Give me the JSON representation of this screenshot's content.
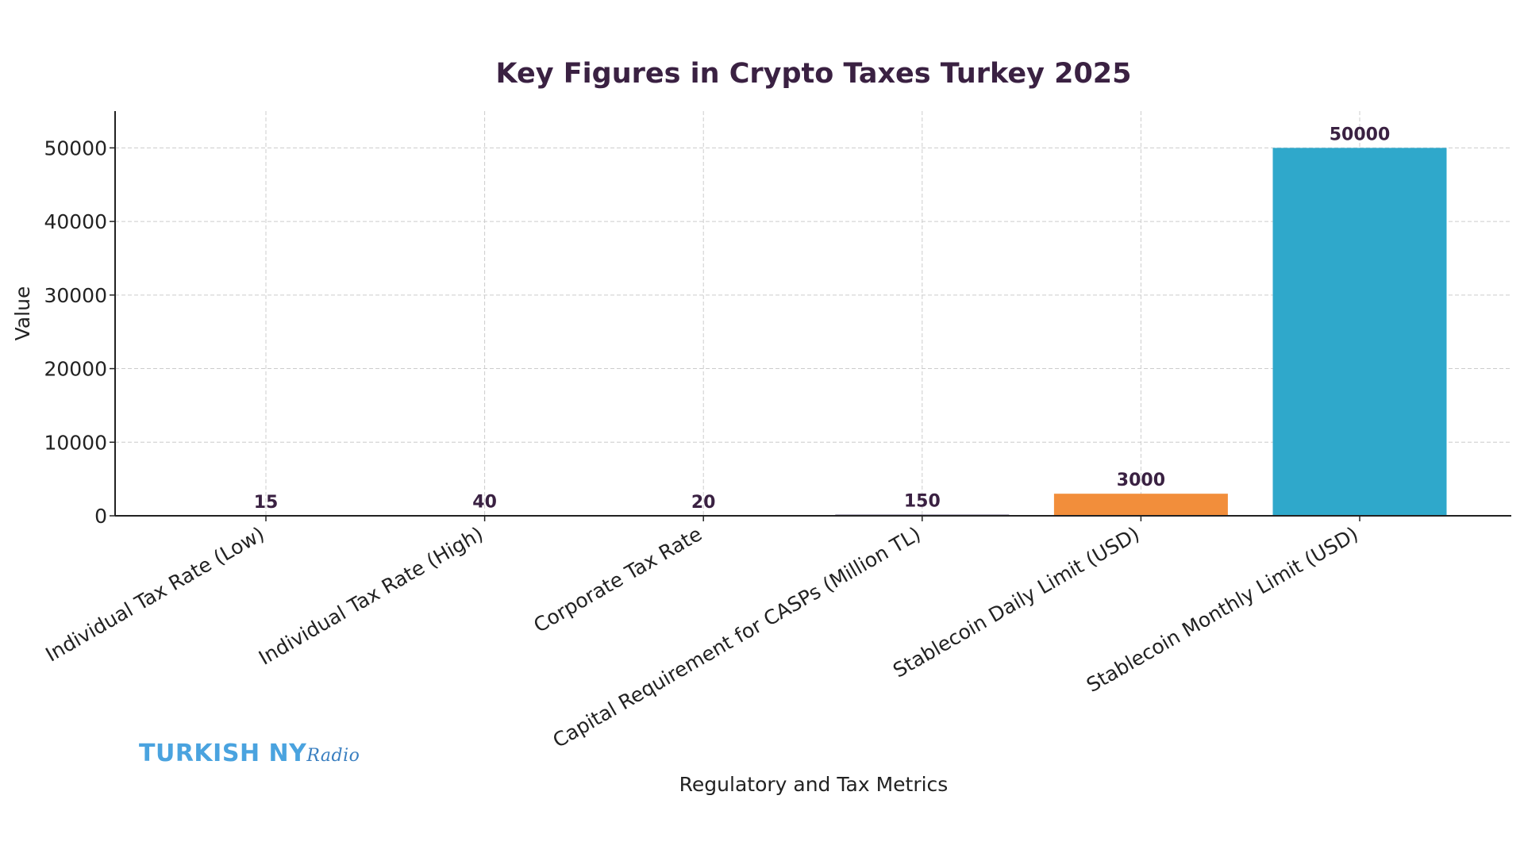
{
  "chart_data": {
    "type": "bar",
    "title": "Key Figures in Crypto Taxes Turkey 2025",
    "xlabel": "Regulatory and Tax Metrics",
    "ylabel": "Value",
    "categories": [
      "Individual Tax Rate (Low)",
      "Individual Tax Rate (High)",
      "Corporate Tax Rate",
      "Capital Requirement for CASPs (Million TL)",
      "Stablecoin Daily Limit (USD)",
      "Stablecoin Monthly Limit (USD)"
    ],
    "values": [
      15,
      40,
      20,
      150,
      3000,
      50000
    ],
    "data_labels": [
      "15",
      "40",
      "20",
      "150",
      "3000",
      "50000"
    ],
    "colors": [
      "#f5ecf2",
      "#efe2ea",
      "#f7eff4",
      "#3a2b5c",
      "#f28e3b",
      "#2fa8cb"
    ],
    "ylim": [
      0,
      55000
    ],
    "yticks": [
      0,
      10000,
      20000,
      30000,
      40000,
      50000
    ],
    "ytick_labels": [
      "0",
      "10000",
      "20000",
      "30000",
      "40000",
      "50000"
    ],
    "grid": true
  },
  "logo": {
    "main": "TURKISH NY",
    "script": "Radio"
  }
}
